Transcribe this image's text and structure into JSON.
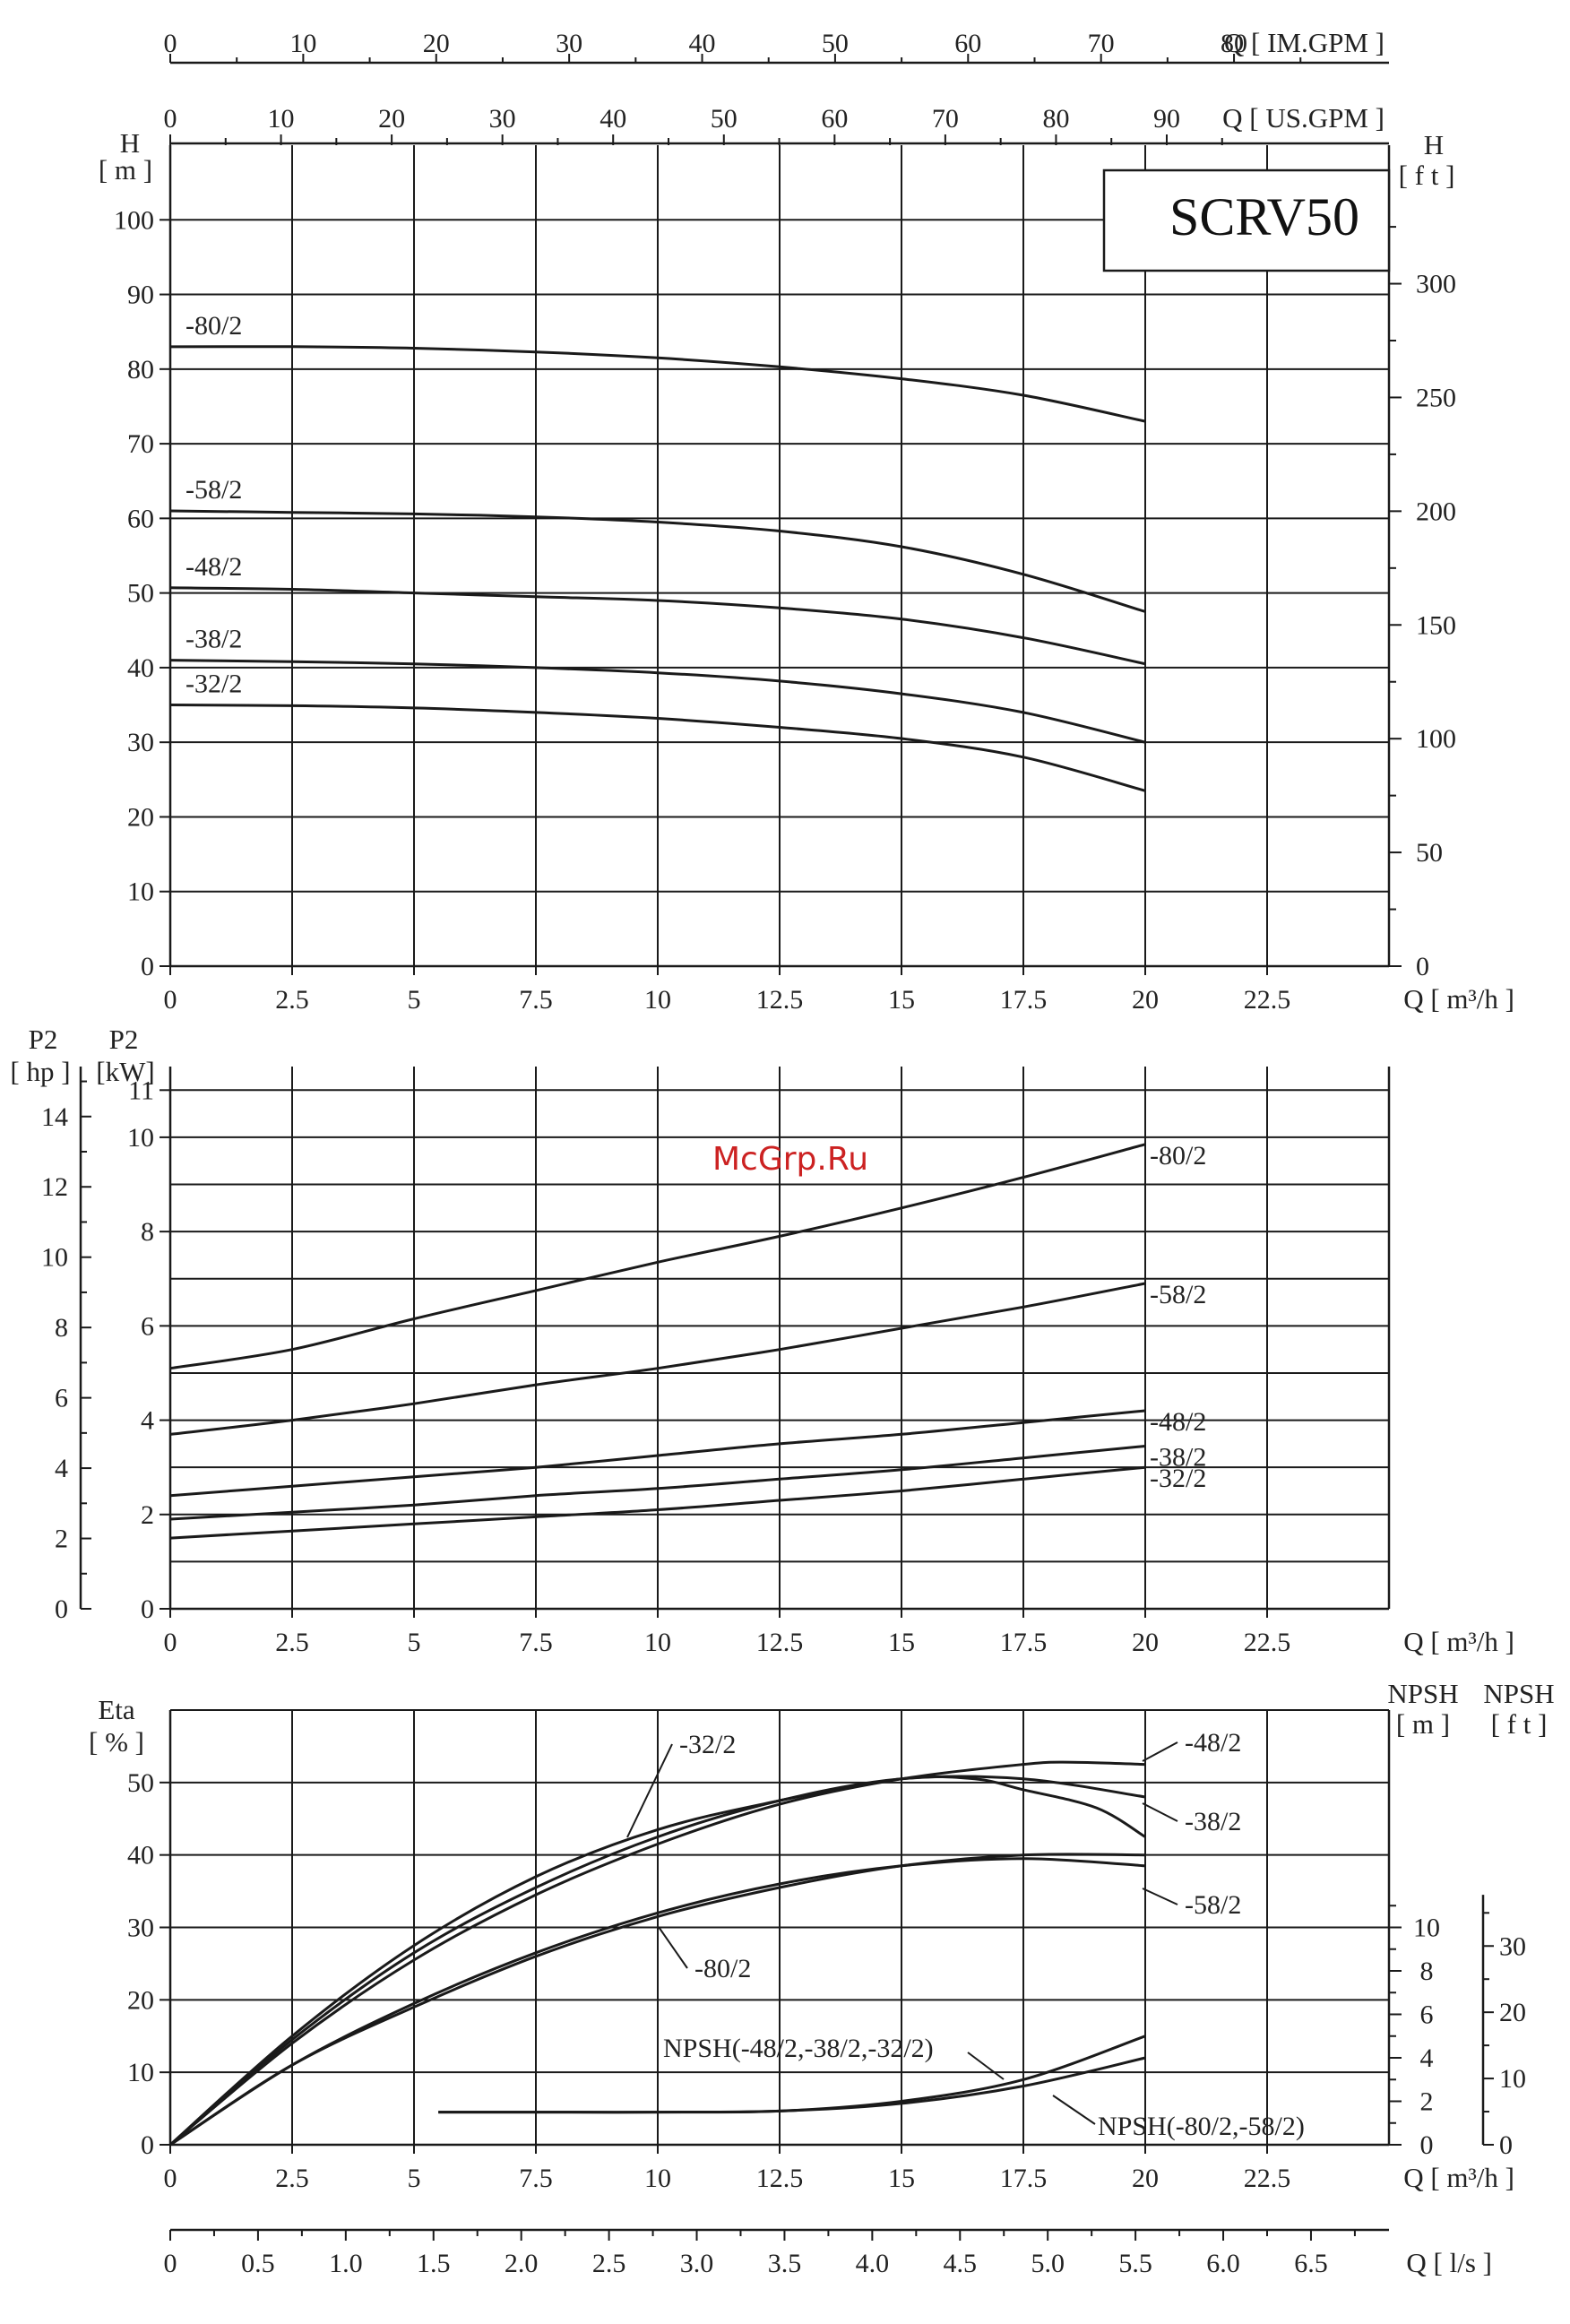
{
  "model": "SCRV50",
  "watermark": "McGrp.Ru",
  "colors": {
    "curve": "#1a1a1a",
    "watermark": "#cc2222",
    "background": "#ffffff"
  },
  "top_axes": {
    "im_gpm": {
      "label": "Q [ IM.GPM ]",
      "ticks": [
        "0",
        "10",
        "20",
        "30",
        "40",
        "50",
        "60",
        "70",
        "80"
      ],
      "values": [
        0,
        10,
        20,
        30,
        40,
        50,
        60,
        70,
        80
      ]
    },
    "us_gpm": {
      "label": "Q [ US.GPM ]",
      "ticks": [
        "0",
        "10",
        "20",
        "30",
        "40",
        "50",
        "60",
        "70",
        "80",
        "90"
      ],
      "values": [
        0,
        10,
        20,
        30,
        40,
        50,
        60,
        70,
        80,
        90
      ]
    }
  },
  "bottom_axis": {
    "label": "Q [ l/s ]",
    "ticks": [
      "0",
      "0.5",
      "1.0",
      "1.5",
      "2.0",
      "2.5",
      "3.0",
      "3.5",
      "4.0",
      "4.5",
      "5.0",
      "5.5",
      "6.0",
      "6.5"
    ],
    "values": [
      0,
      0.5,
      1,
      1.5,
      2,
      2.5,
      3,
      3.5,
      4,
      4.5,
      5,
      5.5,
      6,
      6.5
    ]
  },
  "q_axis": {
    "label": "Q [ m³/h ]",
    "ticks": [
      "0",
      "2.5",
      "5",
      "7.5",
      "10",
      "12.5",
      "15",
      "17.5",
      "20",
      "22.5"
    ],
    "values": [
      0,
      2.5,
      5,
      7.5,
      10,
      12.5,
      15,
      17.5,
      20,
      22.5
    ]
  },
  "chart_data": [
    {
      "type": "line",
      "id": "head",
      "ylabel_left_1": "H",
      "ylabel_left_2": "[ m ]",
      "ylabel_right_1": "H",
      "ylabel_right_2": "[ f t ]",
      "xlabel": "Q [ m³/h ]",
      "xlim": [
        0,
        25
      ],
      "ylim": [
        0,
        110
      ],
      "yticks": [
        "0",
        "10",
        "20",
        "30",
        "40",
        "50",
        "60",
        "70",
        "80",
        "90",
        "100"
      ],
      "yticks_right": [
        "0",
        "50",
        "100",
        "150",
        "200",
        "250",
        "300"
      ],
      "yticks_right_values": [
        0,
        50,
        100,
        150,
        200,
        250,
        300
      ],
      "grid": true,
      "series": [
        {
          "name": "-80/2",
          "x": [
            0,
            2.5,
            5,
            7.5,
            10,
            12.5,
            15,
            17.5,
            20
          ],
          "y": [
            83,
            83,
            82.8,
            82.3,
            81.5,
            80.3,
            78.7,
            76.5,
            73
          ]
        },
        {
          "name": "-58/2",
          "x": [
            0,
            2.5,
            5,
            7.5,
            10,
            12.5,
            15,
            17.5,
            20
          ],
          "y": [
            61,
            60.8,
            60.6,
            60.2,
            59.5,
            58.3,
            56.2,
            52.5,
            47.5
          ]
        },
        {
          "name": "-48/2",
          "x": [
            0,
            2.5,
            5,
            7.5,
            10,
            12.5,
            15,
            17.5,
            20
          ],
          "y": [
            50.7,
            50.5,
            50,
            49.5,
            49,
            48,
            46.5,
            44,
            40.5
          ]
        },
        {
          "name": "-38/2",
          "x": [
            0,
            2.5,
            5,
            7.5,
            10,
            12.5,
            15,
            17.5,
            20
          ],
          "y": [
            41,
            40.8,
            40.5,
            40,
            39.3,
            38.2,
            36.5,
            34,
            30
          ]
        },
        {
          "name": "-32/2",
          "x": [
            0,
            2.5,
            5,
            7.5,
            10,
            12.5,
            15,
            17.5,
            20
          ],
          "y": [
            35,
            34.9,
            34.6,
            34,
            33.2,
            32,
            30.5,
            28,
            23.5
          ]
        }
      ]
    },
    {
      "type": "line",
      "id": "power",
      "ylabel_left_1": "P2",
      "ylabel_left_2": "[ hp ]",
      "ylabel_inner_1": "P2",
      "ylabel_inner_2": "[kW]",
      "xlabel": "Q [ m³/h ]",
      "xlim": [
        0,
        25
      ],
      "ylim": [
        0,
        11.5
      ],
      "yticks": [
        "0",
        "2",
        "4",
        "6",
        "8",
        "10",
        "11"
      ],
      "yticks_values": [
        0,
        2,
        4,
        6,
        8,
        10,
        11
      ],
      "yticks_hp": [
        "0",
        "2",
        "4",
        "6",
        "8",
        "10",
        "12",
        "14"
      ],
      "yticks_hp_values": [
        0,
        2,
        4,
        6,
        8,
        10,
        12,
        14
      ],
      "grid": true,
      "series": [
        {
          "name": "-80/2",
          "x": [
            0,
            2.5,
            5,
            7.5,
            10,
            12.5,
            15,
            17.5,
            20
          ],
          "y": [
            5.1,
            5.5,
            6.15,
            6.75,
            7.35,
            7.9,
            8.5,
            9.15,
            9.85
          ]
        },
        {
          "name": "-58/2",
          "x": [
            0,
            2.5,
            5,
            7.5,
            10,
            12.5,
            15,
            17.5,
            20
          ],
          "y": [
            3.7,
            4.0,
            4.35,
            4.75,
            5.1,
            5.5,
            5.95,
            6.4,
            6.9
          ]
        },
        {
          "name": "-48/2",
          "x": [
            0,
            2.5,
            5,
            7.5,
            10,
            12.5,
            15,
            17.5,
            20
          ],
          "y": [
            2.4,
            2.6,
            2.8,
            3.0,
            3.25,
            3.5,
            3.7,
            3.95,
            4.2
          ]
        },
        {
          "name": "-38/2",
          "x": [
            0,
            2.5,
            5,
            7.5,
            10,
            12.5,
            15,
            17.5,
            20
          ],
          "y": [
            1.9,
            2.05,
            2.2,
            2.4,
            2.55,
            2.75,
            2.95,
            3.2,
            3.45
          ]
        },
        {
          "name": "-32/2",
          "x": [
            0,
            2.5,
            5,
            7.5,
            10,
            12.5,
            15,
            17.5,
            20
          ],
          "y": [
            1.5,
            1.65,
            1.8,
            1.95,
            2.1,
            2.3,
            2.5,
            2.75,
            3.0
          ]
        }
      ]
    },
    {
      "type": "line",
      "id": "efficiency",
      "ylabel_left_1": "Eta",
      "ylabel_left_2": "[ % ]",
      "ylabel_npsh_m_1": "NPSH",
      "ylabel_npsh_m_2": "[ m ]",
      "ylabel_npsh_ft_1": "NPSH",
      "ylabel_npsh_ft_2": "[ f t ]",
      "xlabel": "Q [ m³/h ]",
      "xlim": [
        0,
        25
      ],
      "ylim": [
        0,
        60
      ],
      "yticks": [
        "0",
        "10",
        "20",
        "30",
        "40",
        "50"
      ],
      "npsh_m_ticks": [
        "0",
        "2",
        "4",
        "6",
        "8",
        "10"
      ],
      "npsh_m_values": [
        0,
        2,
        4,
        6,
        8,
        10
      ],
      "npsh_ft_ticks": [
        "0",
        "10",
        "20",
        "30"
      ],
      "npsh_ft_values": [
        0,
        10,
        20,
        30
      ],
      "grid": true,
      "series": [
        {
          "name": "-32/2",
          "x": [
            0,
            2.5,
            5,
            7.5,
            10,
            12.5,
            15,
            16.5,
            17.5,
            19,
            20
          ],
          "y": [
            0,
            15,
            27.5,
            37,
            43.5,
            47.5,
            50.5,
            50.5,
            49,
            46.5,
            42.5
          ]
        },
        {
          "name": "-48/2",
          "x": [
            0,
            2.5,
            5,
            7.5,
            10,
            12.5,
            15,
            17.5,
            18.5,
            20
          ],
          "y": [
            0,
            14,
            25.5,
            34.5,
            41.5,
            47,
            50.5,
            52.5,
            52.8,
            52.5
          ]
        },
        {
          "name": "-38/2",
          "x": [
            0,
            2.5,
            5,
            7.5,
            10,
            12.5,
            15,
            17.5,
            20
          ],
          "y": [
            0,
            14.5,
            26.5,
            35.5,
            42.5,
            47.5,
            50.5,
            50.5,
            48
          ]
        },
        {
          "name": "-58/2",
          "x": [
            0,
            2.5,
            5,
            7.5,
            10,
            12.5,
            15,
            17.5,
            20
          ],
          "y": [
            0,
            11,
            19.5,
            26.5,
            32,
            36,
            38.5,
            39.5,
            38.5
          ]
        },
        {
          "name": "-80/2",
          "x": [
            0,
            2.5,
            5,
            7.5,
            10,
            12.5,
            15,
            17.5,
            20
          ],
          "y": [
            0,
            11,
            19,
            26,
            31.5,
            35.5,
            38.5,
            40,
            40
          ]
        }
      ],
      "npsh_series": [
        {
          "name": "NPSH(-48/2,-38/2,-32/2)",
          "x": [
            5.5,
            7.5,
            10,
            12.5,
            15,
            17.5,
            20
          ],
          "y": [
            1.5,
            1.5,
            1.5,
            1.55,
            2,
            3,
            5
          ]
        },
        {
          "name": "NPSH(-80/2,-58/2)",
          "x": [
            5.5,
            7.5,
            10,
            12.5,
            15,
            17.5,
            20
          ],
          "y": [
            1.5,
            1.5,
            1.5,
            1.55,
            1.9,
            2.7,
            4
          ]
        }
      ]
    }
  ]
}
